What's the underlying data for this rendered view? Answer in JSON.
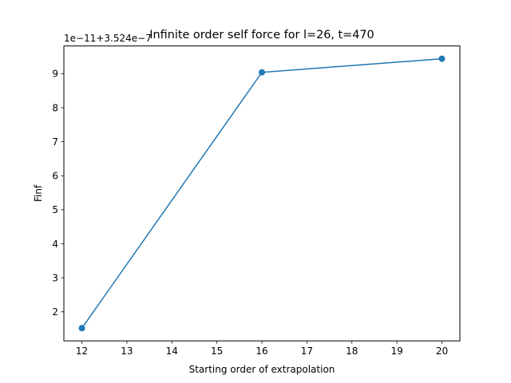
{
  "chart_data": {
    "type": "line",
    "title": "Infinite order self force for l=26, t=470",
    "xlabel": "Starting order of extrapolation",
    "ylabel": "Finf",
    "offset_label": "1e−11+3.524e−7",
    "x": [
      12,
      16,
      20
    ],
    "series": [
      {
        "values": [
          1.52,
          9.04,
          9.44
        ]
      }
    ],
    "xlim": [
      11.6,
      20.4
    ],
    "ylim": [
      1.146,
      9.816
    ],
    "xticks": [
      12,
      13,
      14,
      15,
      16,
      17,
      18,
      19,
      20
    ],
    "yticks": [
      2,
      3,
      4,
      5,
      6,
      7,
      8,
      9
    ],
    "grid": false,
    "markers": "circle",
    "color": "#1f77b4"
  }
}
